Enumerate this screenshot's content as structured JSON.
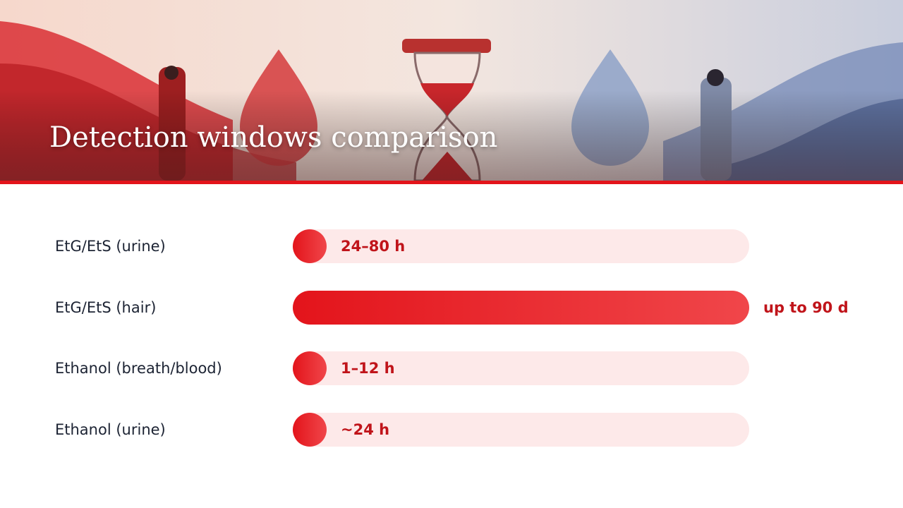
{
  "header": {
    "title": "Detection windows comparison"
  },
  "rows": [
    {
      "label": "EtG/EtS (urine)",
      "value_label": "24–80 h",
      "fill": 0.074
    },
    {
      "label": "EtG/EtS (hair)",
      "value_label": "up to 90 d",
      "fill": 1
    },
    {
      "label": "Ethanol (breath/blood)",
      "value_label": "1–12 h",
      "fill": 0.074
    },
    {
      "label": "Ethanol (urine)",
      "value_label": "~24 h",
      "fill": 0.074
    }
  ]
}
